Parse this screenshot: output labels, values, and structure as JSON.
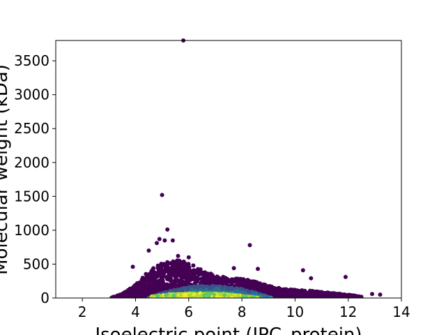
{
  "chart_data": {
    "type": "scatter",
    "xlabel": "Isoelectric point (IPC_protein)",
    "ylabel": "Molecular weight (kDa)",
    "xlim": [
      1,
      14
    ],
    "ylim": [
      0,
      3800
    ],
    "xticks": [
      2,
      4,
      6,
      8,
      10,
      12,
      14
    ],
    "yticks": [
      0,
      500,
      1000,
      1500,
      2000,
      2500,
      3000,
      3500
    ],
    "grid": false,
    "colormap": "viridis",
    "colors": {
      "low_density": "#440154",
      "mid_density": "#21918c",
      "high_density": "#fde725"
    },
    "outliers": [
      {
        "x": 5.8,
        "y": 3800
      },
      {
        "x": 5.0,
        "y": 1520
      },
      {
        "x": 5.2,
        "y": 1010
      },
      {
        "x": 4.9,
        "y": 870
      },
      {
        "x": 5.1,
        "y": 850
      },
      {
        "x": 5.4,
        "y": 850
      },
      {
        "x": 4.8,
        "y": 810
      },
      {
        "x": 8.3,
        "y": 780
      },
      {
        "x": 4.5,
        "y": 700
      },
      {
        "x": 5.6,
        "y": 620
      },
      {
        "x": 6.0,
        "y": 600
      },
      {
        "x": 3.9,
        "y": 460
      },
      {
        "x": 10.3,
        "y": 410
      },
      {
        "x": 8.6,
        "y": 430
      },
      {
        "x": 7.7,
        "y": 440
      },
      {
        "x": 11.9,
        "y": 310
      },
      {
        "x": 10.6,
        "y": 290
      },
      {
        "x": 12.9,
        "y": 60
      },
      {
        "x": 13.2,
        "y": 50
      }
    ],
    "density_envelope": {
      "x": [
        3.1,
        3.5,
        4.0,
        4.5,
        5.0,
        5.5,
        6.0,
        6.5,
        7.0,
        7.5,
        8.0,
        8.5,
        9.0,
        9.5,
        10.0,
        10.5,
        11.0,
        11.5,
        12.0,
        12.5
      ],
      "y_max": [
        10,
        60,
        200,
        400,
        520,
        560,
        540,
        420,
        330,
        300,
        280,
        250,
        180,
        140,
        120,
        110,
        90,
        70,
        50,
        20
      ]
    }
  }
}
